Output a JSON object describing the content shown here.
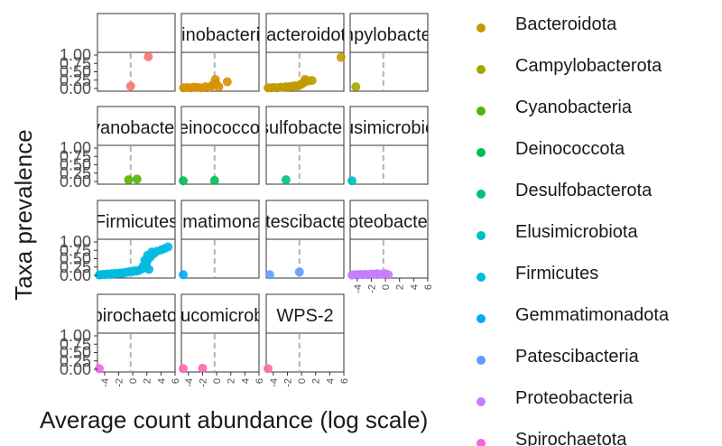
{
  "chart_data": {
    "type": "scatter",
    "title": "",
    "xlabel": "Average count abundance (log scale)",
    "ylabel": "Taxa prevalence",
    "xlim": [
      -5,
      6
    ],
    "ylim": [
      0,
      1
    ],
    "x_ticks": [
      "-4",
      "-2",
      "0",
      "2",
      "4",
      "6"
    ],
    "y_ticks": [
      "0.00",
      "0.25",
      "0.50",
      "0.75",
      "1.00"
    ],
    "reference_line_x": -0.3,
    "facets": [
      {
        "strip": "",
        "color": "#F8766D",
        "x_axis": false,
        "points": [
          [
            -0.3,
            0.07
          ],
          [
            2.2,
            0.95
          ]
        ]
      },
      {
        "strip": "Actinobacteriota",
        "color": "#D89000",
        "x_axis": false,
        "points": [
          [
            -4.7,
            0.02
          ],
          [
            -4.2,
            0.03
          ],
          [
            -3.7,
            0.02
          ],
          [
            -3.2,
            0.04
          ],
          [
            -2.7,
            0.03
          ],
          [
            -2.2,
            0.02
          ],
          [
            -1.6,
            0.05
          ],
          [
            -1.0,
            0.04
          ],
          [
            -0.6,
            0.1
          ],
          [
            -0.1,
            0.15
          ],
          [
            0.3,
            0.05
          ],
          [
            -0.2,
            0.27
          ],
          [
            1.5,
            0.2
          ]
        ]
      },
      {
        "strip": "Bacteroidota",
        "color": "#C09B00",
        "x_axis": false,
        "points": [
          [
            -4.8,
            0.02
          ],
          [
            -4.3,
            0.02
          ],
          [
            -3.9,
            0.03
          ],
          [
            -3.5,
            0.02
          ],
          [
            -3.0,
            0.04
          ],
          [
            -2.6,
            0.03
          ],
          [
            -2.2,
            0.05
          ],
          [
            -1.8,
            0.05
          ],
          [
            -1.4,
            0.06
          ],
          [
            -1.0,
            0.08
          ],
          [
            -0.6,
            0.07
          ],
          [
            -0.3,
            0.1
          ],
          [
            0.0,
            0.13
          ],
          [
            0.3,
            0.18
          ],
          [
            0.6,
            0.2
          ],
          [
            1.0,
            0.23
          ],
          [
            0.5,
            0.27
          ],
          [
            1.5,
            0.24
          ],
          [
            5.6,
            0.93
          ]
        ]
      },
      {
        "strip": "Campylobacterota",
        "color": "#A3A500",
        "x_axis": false,
        "points": [
          [
            -4.2,
            0.05
          ]
        ]
      },
      {
        "strip": "Cyanobacteria",
        "color": "#53B400",
        "x_axis": false,
        "points": [
          [
            -0.6,
            0.05
          ],
          [
            0.6,
            0.07
          ]
        ]
      },
      {
        "strip": "Deinococcota",
        "color": "#00BC56",
        "x_axis": false,
        "points": [
          [
            -4.8,
            0.02
          ],
          [
            -0.3,
            0.03
          ]
        ]
      },
      {
        "strip": "Desulfobacterota",
        "color": "#00C083",
        "x_axis": false,
        "points": [
          [
            -2.2,
            0.05
          ]
        ]
      },
      {
        "strip": "Elusimicrobiota",
        "color": "#00BFC4",
        "x_axis": false,
        "points": [
          [
            -4.8,
            0.02
          ]
        ]
      },
      {
        "strip": "Firmicutes",
        "color": "#00BAE0",
        "x_axis": false,
        "points": [
          [
            -4.8,
            0.01
          ],
          [
            -4.5,
            0.02
          ],
          [
            -4.2,
            0.03
          ],
          [
            -3.9,
            0.02
          ],
          [
            -3.6,
            0.04
          ],
          [
            -3.3,
            0.03
          ],
          [
            -3.0,
            0.05
          ],
          [
            -2.7,
            0.04
          ],
          [
            -2.4,
            0.06
          ],
          [
            -2.1,
            0.05
          ],
          [
            -1.8,
            0.07
          ],
          [
            -1.5,
            0.06
          ],
          [
            -1.2,
            0.08
          ],
          [
            -0.9,
            0.09
          ],
          [
            -0.6,
            0.1
          ],
          [
            -0.3,
            0.12
          ],
          [
            0.0,
            0.11
          ],
          [
            0.3,
            0.14
          ],
          [
            0.6,
            0.13
          ],
          [
            1.0,
            0.16
          ],
          [
            1.3,
            0.2
          ],
          [
            1.5,
            0.28
          ],
          [
            1.8,
            0.33
          ],
          [
            2.0,
            0.4
          ],
          [
            2.2,
            0.5
          ],
          [
            1.7,
            0.45
          ],
          [
            2.5,
            0.55
          ],
          [
            2.1,
            0.6
          ],
          [
            3.0,
            0.65
          ],
          [
            2.7,
            0.7
          ],
          [
            3.4,
            0.72
          ],
          [
            4.0,
            0.76
          ],
          [
            4.5,
            0.8
          ],
          [
            5.0,
            0.85
          ],
          [
            1.9,
            0.22
          ],
          [
            2.3,
            0.18
          ]
        ]
      },
      {
        "strip": "Gemmatimonadota",
        "color": "#00A9FF",
        "x_axis": false,
        "points": [
          [
            -4.8,
            0.02
          ]
        ]
      },
      {
        "strip": "Patescibacteria",
        "color": "#619CFF",
        "x_axis": false,
        "points": [
          [
            -4.5,
            0.02
          ],
          [
            -0.3,
            0.1
          ]
        ]
      },
      {
        "strip": "Proteobacteria",
        "color": "#C77CFF",
        "x_axis": true,
        "points": [
          [
            -4.8,
            0.01
          ],
          [
            -4.4,
            0.02
          ],
          [
            -4.0,
            0.02
          ],
          [
            -3.6,
            0.03
          ],
          [
            -3.2,
            0.02
          ],
          [
            -2.8,
            0.03
          ],
          [
            -2.4,
            0.02
          ],
          [
            -2.0,
            0.04
          ],
          [
            -1.6,
            0.03
          ],
          [
            -1.2,
            0.05
          ],
          [
            -0.8,
            0.04
          ],
          [
            -0.4,
            0.03
          ],
          [
            0.0,
            0.05
          ],
          [
            0.4,
            0.02
          ]
        ]
      },
      {
        "strip": "Spirochaetota",
        "color": "#F564E3",
        "x_axis": true,
        "points": [
          [
            -4.8,
            0.02
          ]
        ]
      },
      {
        "strip": "Verrucomicrobiota",
        "color": "#FF64B0",
        "x_axis": true,
        "points": [
          [
            -4.8,
            0.02
          ],
          [
            -2.0,
            0.03
          ]
        ]
      },
      {
        "strip": "WPS-2",
        "color": "#FF6C91",
        "x_axis": true,
        "points": [
          [
            -4.8,
            0.02
          ]
        ]
      }
    ],
    "legend": {
      "placement": "right",
      "entries": [
        {
          "label": "Bacteroidota",
          "color": "#C09B00"
        },
        {
          "label": "Campylobacterota",
          "color": "#A3A500"
        },
        {
          "label": "Cyanobacteria",
          "color": "#53B400"
        },
        {
          "label": "Deinococcota",
          "color": "#00BC56"
        },
        {
          "label": "Desulfobacterota",
          "color": "#00C083"
        },
        {
          "label": "Elusimicrobiota",
          "color": "#00BFC4"
        },
        {
          "label": "Firmicutes",
          "color": "#00BAE0"
        },
        {
          "label": "Gemmatimonadota",
          "color": "#00A9FF"
        },
        {
          "label": "Patescibacteria",
          "color": "#619CFF"
        },
        {
          "label": "Proteobacteria",
          "color": "#C77CFF"
        },
        {
          "label": "Spirochaetota",
          "color": "#F564E3"
        }
      ]
    },
    "grid": false,
    "reference_line_color": "#b3b3b3"
  }
}
